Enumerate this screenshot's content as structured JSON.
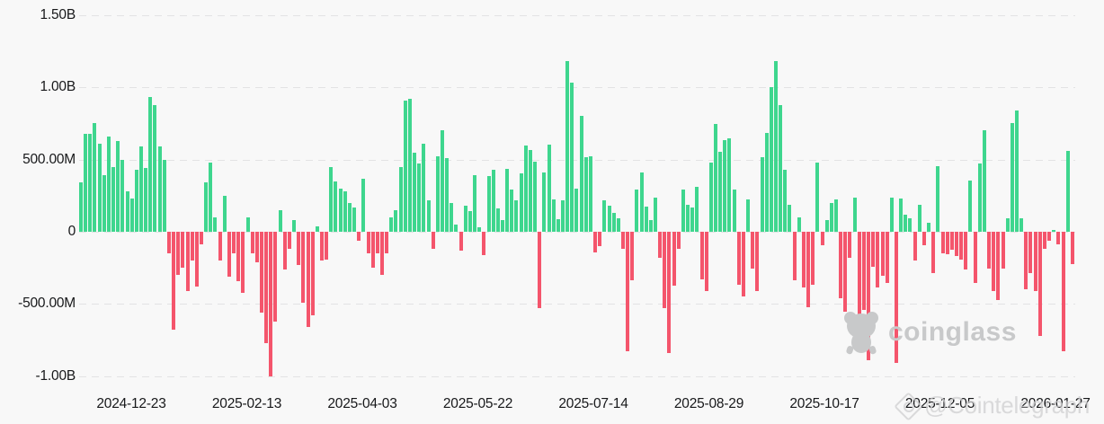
{
  "chart_data": {
    "type": "bar",
    "title": "",
    "description": "Daily net flow bar chart (green = inflow, red = outflow), values in USD",
    "grid": "dashed horizontal gridlines, no axis lines, no legend",
    "positive_color": "#3ed68e",
    "negative_color": "#f4556c",
    "background_color": "#f8f8f8",
    "gridline_color": "#e3e3e4",
    "label_color": "#17181a",
    "y_axis": {
      "tick_labels": [
        "1.50B",
        "1.00B",
        "500.00M",
        "0",
        "-500.00M",
        "-1.00B"
      ],
      "tick_values_millions": [
        1500,
        1000,
        500,
        0,
        -500,
        -1000
      ],
      "range_millions": [
        -1350,
        1550
      ]
    },
    "x_axis": {
      "tick_labels": [
        "2024-12-23",
        "2025-02-13",
        "2025-04-03",
        "2025-05-22",
        "2025-07-14",
        "2025-08-29",
        "2025-10-17",
        "2025-12-05",
        "2026-01-27"
      ]
    },
    "values_millions": [
      340,
      680,
      680,
      750,
      610,
      390,
      660,
      450,
      630,
      500,
      280,
      230,
      430,
      590,
      440,
      930,
      880,
      590,
      500,
      -150,
      -680,
      -300,
      -250,
      -410,
      -200,
      -380,
      -90,
      340,
      480,
      100,
      -200,
      250,
      -310,
      -150,
      -340,
      -420,
      100,
      -150,
      -210,
      -560,
      -770,
      -1000,
      -620,
      150,
      -260,
      -120,
      80,
      -230,
      -490,
      -660,
      -580,
      40,
      -200,
      -190,
      450,
      350,
      300,
      280,
      200,
      170,
      -60,
      370,
      -150,
      -250,
      -150,
      -300,
      -150,
      100,
      150,
      450,
      910,
      920,
      550,
      470,
      610,
      220,
      -120,
      520,
      700,
      510,
      200,
      50,
      -130,
      180,
      140,
      390,
      30,
      -160,
      385,
      430,
      160,
      80,
      435,
      290,
      220,
      405,
      595,
      565,
      485,
      -530,
      410,
      605,
      225,
      90,
      220,
      1180,
      1030,
      300,
      800,
      515,
      520,
      -140,
      -100,
      215,
      180,
      130,
      95,
      -117,
      -825,
      -335,
      290,
      408,
      175,
      80,
      237,
      -180,
      -530,
      -840,
      -370,
      -120,
      290,
      185,
      170,
      310,
      -330,
      -410,
      480,
      744,
      556,
      633,
      644,
      290,
      -367,
      -450,
      227,
      -252,
      -408,
      515,
      685,
      1000,
      1180,
      880,
      431,
      185,
      -335,
      102,
      -387,
      -523,
      -367,
      477,
      -96,
      81,
      196,
      227,
      -460,
      -554,
      -179,
      237,
      -575,
      -544,
      -887,
      -242,
      -387,
      -304,
      -356,
      237,
      -908,
      233,
      117,
      92,
      -196,
      185,
      -96,
      60,
      -283,
      456,
      -148,
      -158,
      -127,
      -169,
      -190,
      -262,
      352,
      -356,
      471,
      700,
      -252,
      -408,
      -471,
      -252,
      92,
      754,
      842,
      92,
      -398,
      -283,
      -408,
      -721,
      -117,
      -60,
      15,
      -90,
      -825,
      560,
      -221
    ]
  },
  "watermarks": {
    "coinglass": {
      "label": "coinglass",
      "icon": "bear-logo-icon",
      "color": "#c8c9ca"
    },
    "cointelegraph": {
      "label": "@Cointelegraph",
      "icon": "diamond-logo-icon",
      "color": "#cfcfd1"
    }
  }
}
